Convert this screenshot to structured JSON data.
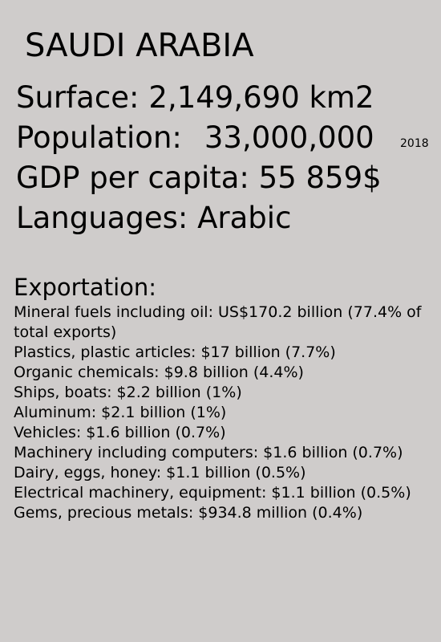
{
  "country": "SAUDI ARABIA",
  "facts": {
    "surface_label": "Surface:",
    "surface_value": "2,149,690 km2",
    "population_label": "Population:",
    "population_value": "33,000,000",
    "population_year": "2018",
    "gdp_label": "GDP per capita:",
    "gdp_value": "55 859$",
    "languages_label": "Languages:",
    "languages_value": "Arabic"
  },
  "exportation": {
    "heading": "Exportation:",
    "items": [
      "Mineral fuels including oil: US$170.2 billion (77.4% of total exports)",
      "Plastics, plastic articles: $17 billion (7.7%)",
      "Organic chemicals: $9.8 billion (4.4%)",
      "Ships, boats: $2.2 billion (1%)",
      "Aluminum: $2.1 billion (1%)",
      "Vehicles: $1.6 billion (0.7%)",
      "Machinery including computers: $1.6 billion (0.7%)",
      "Dairy, eggs, honey: $1.1 billion (0.5%)",
      "Electrical machinery, equipment: $1.1 billion (0.5%)",
      "Gems, precious metals: $934.8 million (0.4%)"
    ]
  }
}
